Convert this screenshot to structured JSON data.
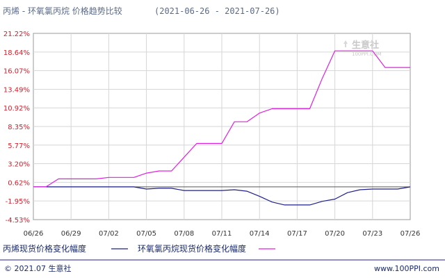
{
  "header": {
    "title": "丙烯 - 环氧氯丙烷 价格趋势比较",
    "date_range": "(2021-06-26 - 2021-07-26)"
  },
  "legend": {
    "items": [
      {
        "label": "丙烯现货价格变化幅度",
        "color": "#1f1f8c"
      },
      {
        "label": "环氧氯丙烷现货价格变化幅度",
        "color": "#e020e0"
      }
    ]
  },
  "footer": {
    "copyright": "© 2021.07 生意社",
    "url": "www.100PPI.com"
  },
  "watermark": {
    "brand": "生意社",
    "url": "100PPI.COM"
  },
  "chart_data": {
    "type": "line",
    "x": [
      "06/26",
      "06/27",
      "06/28",
      "06/29",
      "06/30",
      "07/01",
      "07/02",
      "07/03",
      "07/04",
      "07/05",
      "07/06",
      "07/07",
      "07/08",
      "07/09",
      "07/10",
      "07/11",
      "07/12",
      "07/13",
      "07/14",
      "07/15",
      "07/16",
      "07/17",
      "07/18",
      "07/19",
      "07/20",
      "07/21",
      "07/22",
      "07/23",
      "07/24",
      "07/25",
      "07/26"
    ],
    "x_ticks": [
      "06/26",
      "06/29",
      "07/02",
      "07/05",
      "07/08",
      "07/11",
      "07/14",
      "07/17",
      "07/20",
      "07/23",
      "07/26"
    ],
    "y_ticks": [
      "21.22%",
      "18.64%",
      "16.07%",
      "13.49%",
      "10.92%",
      "8.35%",
      "5.77%",
      "3.20%",
      "0.62%",
      "-1.95%",
      "-4.53%"
    ],
    "ylim": [
      -4.53,
      21.22
    ],
    "grid": true,
    "legend_position": "bottom",
    "series": [
      {
        "name": "丙烯现货价格变化幅度",
        "color": "#1f1f8c",
        "values": [
          0.0,
          0.0,
          0.0,
          0.0,
          0.0,
          0.0,
          0.0,
          0.0,
          0.0,
          -0.3,
          -0.2,
          -0.2,
          -0.5,
          -0.5,
          -0.5,
          -0.5,
          -0.4,
          -0.6,
          -1.3,
          -2.1,
          -2.5,
          -2.5,
          -2.5,
          -2.0,
          -1.7,
          -0.8,
          -0.4,
          -0.3,
          -0.3,
          -0.3,
          0.0
        ]
      },
      {
        "name": "环氧氯丙烷现货价格变化幅度",
        "color": "#e020e0",
        "values": [
          0.0,
          0.0,
          1.1,
          1.1,
          1.1,
          1.1,
          1.3,
          1.3,
          1.3,
          1.9,
          2.2,
          2.2,
          4.1,
          6.0,
          6.0,
          6.0,
          9.0,
          9.0,
          10.2,
          10.8,
          10.8,
          10.8,
          10.8,
          15.0,
          18.8,
          18.8,
          18.8,
          18.8,
          16.5,
          16.5,
          16.5
        ]
      }
    ]
  }
}
